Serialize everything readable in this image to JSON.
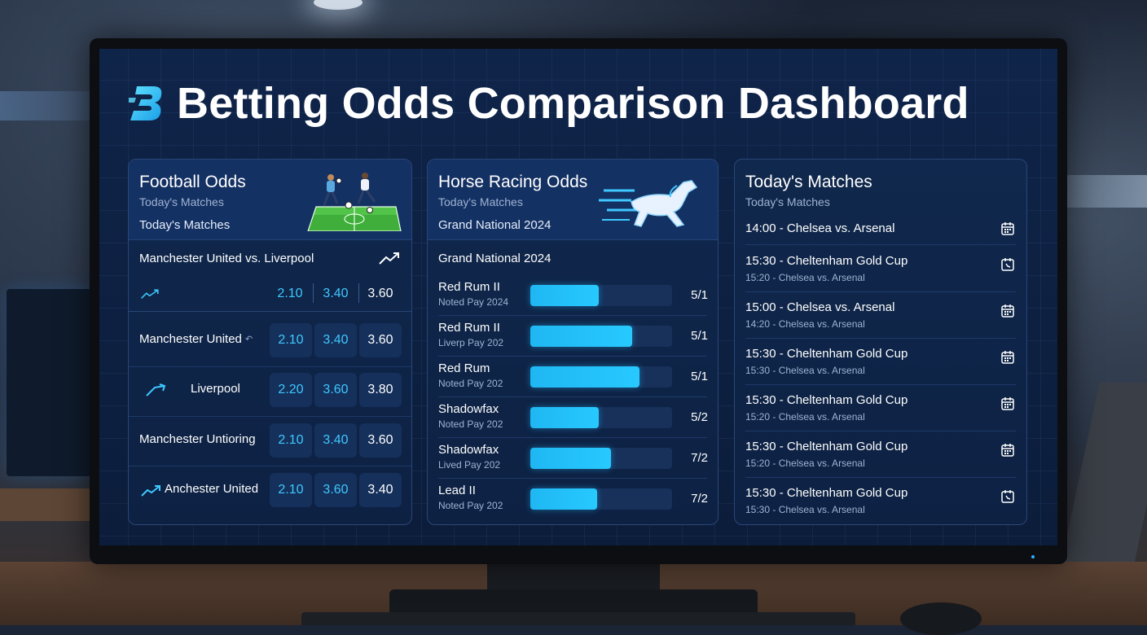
{
  "app": {
    "title": "Betting Odds Comparison Dashboard",
    "accent_color": "#2bc5ff",
    "logo_icon": "b-logo-icon"
  },
  "football": {
    "title": "Football Odds",
    "subtitle": "Today's Matches",
    "subtitle2": "Today's Matches",
    "art_icon": "football-players-icon",
    "featured_match": "Manchester United vs. Liverpool",
    "featured_odds": [
      "2.10",
      "3.40",
      "3.60"
    ],
    "rows": [
      {
        "name": "Manchester United",
        "odds": [
          "2.10",
          "3.40",
          "3.60"
        ]
      },
      {
        "name": "Liverpool",
        "odds": [
          "2.20",
          "3.60",
          "3.80"
        ]
      },
      {
        "name": "Manchester Untioring",
        "odds": [
          "2.10",
          "3.40",
          "3.60"
        ]
      },
      {
        "name": "Anchester United",
        "odds": [
          "2.10",
          "3.60",
          "3.40"
        ]
      }
    ]
  },
  "horse": {
    "title": "Horse Racing Odds",
    "subtitle": "Today's Matches",
    "subtitle2": "Grand National 2024",
    "art_icon": "racing-horse-icon",
    "race": "Grand National 2024",
    "runners": [
      {
        "name": "Red Rum II",
        "note": "Noted Pay 2024",
        "odds": "5/1",
        "strength": 0.48
      },
      {
        "name": "Red Rum II",
        "note": "Liverp Pay 202",
        "odds": "5/1",
        "strength": 0.72
      },
      {
        "name": "Red Rum",
        "note": "Noted Pay 202",
        "odds": "5/1",
        "strength": 0.77
      },
      {
        "name": "Shadowfax",
        "note": "Noted Pay 202",
        "odds": "5/2",
        "strength": 0.48
      },
      {
        "name": "Shadowfax",
        "note": "Lived Pay 202",
        "odds": "7/2",
        "strength": 0.57
      },
      {
        "name": "Lead II",
        "note": "Noted Pay 202",
        "odds": "7/2",
        "strength": 0.47
      }
    ]
  },
  "matches": {
    "title": "Today's Matches",
    "subtitle": "Today's Matches",
    "items": [
      {
        "title": "14:00 - Chelsea vs. Arsenal",
        "sub": "",
        "icon": "calendar-icon"
      },
      {
        "title": "15:30 - Cheltenham Gold Cup",
        "sub": "15:20 - Chelsea vs. Arsenal",
        "icon": "clock-calendar-icon"
      },
      {
        "title": "15:00 - Chelsea vs. Arsenal",
        "sub": "14:20 - Chelsea vs. Arsenal",
        "icon": "calendar-icon"
      },
      {
        "title": "15:30 - Cheltenham Gold Cup",
        "sub": "15:30 - Chelsea vs. Arsenal",
        "icon": "calendar-icon"
      },
      {
        "title": "15:30 - Cheltenham Gold Cup",
        "sub": "15:20 - Chelsea vs. Arsenal",
        "icon": "calendar-icon"
      },
      {
        "title": "15:30 - Cheltenham Gold Cup",
        "sub": "15:20 - Chelsea vs. Arsenal",
        "icon": "calendar-icon"
      },
      {
        "title": "15:30 - Cheltenham Gold Cup",
        "sub": "15:30 - Chelsea vs. Arsenal",
        "icon": "clock-calendar-icon"
      }
    ]
  }
}
